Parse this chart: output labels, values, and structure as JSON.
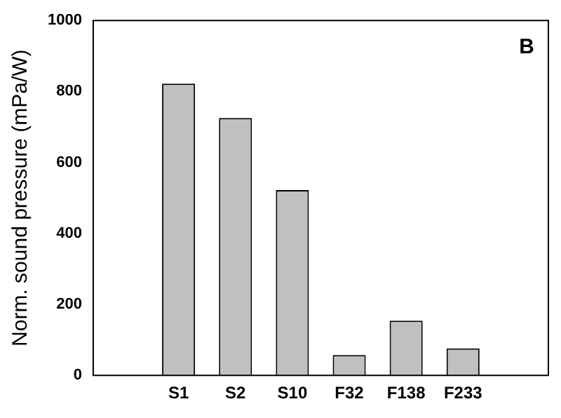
{
  "chart_data": {
    "type": "bar",
    "ylabel": "Norm. sound pressure (mPa/W)",
    "categories": [
      null,
      "S1",
      "S2",
      "S10",
      "F32",
      "F138",
      "F233",
      null
    ],
    "values": [
      null,
      822,
      725,
      522,
      57,
      154,
      76,
      null
    ],
    "color": "#c0c0c0",
    "ylim": [
      0,
      1000
    ],
    "yticks": [
      0,
      200,
      400,
      600,
      800,
      1000
    ],
    "annotations": [
      "B"
    ],
    "grid": false,
    "legend": false
  }
}
